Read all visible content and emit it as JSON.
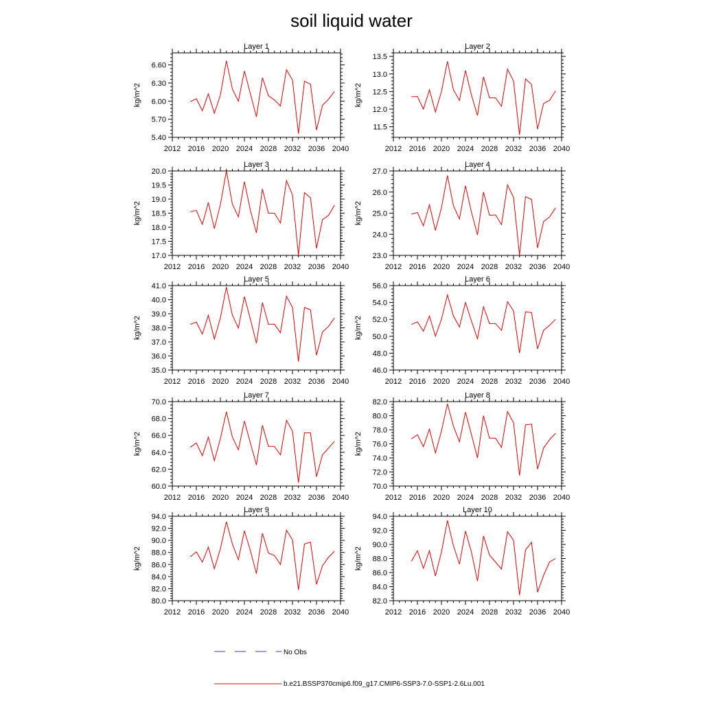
{
  "figure": {
    "title": "soil liquid water"
  },
  "legend": {
    "obs_label": "No Obs",
    "model_label": "b.e21.BSSP370cmip6.f09_g17.CMIP6-SSP3-7.0-SSP1-2.6Lu.001",
    "obs_color": "#3a3ad6",
    "model_color": "#e00000"
  },
  "chart_data": [
    {
      "type": "line",
      "title": "Layer 1",
      "ylabel": "kg/m^2",
      "xlim": [
        2012,
        2040
      ],
      "ylim": [
        5.4,
        6.8
      ],
      "x_ticks": [
        2012,
        2016,
        2020,
        2024,
        2028,
        2032,
        2036,
        2040
      ],
      "y_ticks": [
        5.4,
        5.7,
        6.0,
        6.3,
        6.6
      ],
      "y_tick_labels": [
        "5.40",
        "5.70",
        "6.00",
        "6.30",
        "6.60"
      ],
      "x": [
        2015,
        2016,
        2017,
        2018,
        2019,
        2020,
        2021,
        2022,
        2023,
        2024,
        2025,
        2026,
        2027,
        2028,
        2029,
        2030,
        2031,
        2032,
        2033,
        2034,
        2035,
        2036,
        2037,
        2038,
        2039
      ],
      "series": [
        {
          "values": [
            5.99,
            6.04,
            5.84,
            6.12,
            5.8,
            6.1,
            6.67,
            6.2,
            6.0,
            6.5,
            6.12,
            5.74,
            6.39,
            6.09,
            6.02,
            5.92,
            6.52,
            6.35,
            5.46,
            6.33,
            6.28,
            5.52,
            5.93,
            6.03,
            6.16
          ]
        }
      ]
    },
    {
      "type": "line",
      "title": "Layer 2",
      "ylabel": "kg/m^2",
      "xlim": [
        2012,
        2040
      ],
      "ylim": [
        11.2,
        13.6
      ],
      "x_ticks": [
        2012,
        2016,
        2020,
        2024,
        2028,
        2032,
        2036,
        2040
      ],
      "y_ticks": [
        11.5,
        12.0,
        12.5,
        13.0,
        13.5
      ],
      "y_tick_labels": [
        "11.5",
        "12.0",
        "12.5",
        "13.0",
        "13.5"
      ],
      "x": [
        2015,
        2016,
        2017,
        2018,
        2019,
        2020,
        2021,
        2022,
        2023,
        2024,
        2025,
        2026,
        2027,
        2028,
        2029,
        2030,
        2031,
        2032,
        2033,
        2034,
        2035,
        2036,
        2037,
        2038,
        2039
      ],
      "series": [
        {
          "values": [
            12.35,
            12.36,
            12.0,
            12.55,
            11.92,
            12.5,
            13.36,
            12.55,
            12.25,
            13.1,
            12.4,
            11.82,
            12.92,
            12.32,
            12.32,
            12.08,
            13.14,
            12.8,
            11.27,
            12.86,
            12.7,
            11.43,
            12.16,
            12.25,
            12.52
          ]
        }
      ]
    },
    {
      "type": "line",
      "title": "Layer 3",
      "ylabel": "kg/m^2",
      "xlim": [
        2012,
        2040
      ],
      "ylim": [
        17.0,
        20.0
      ],
      "x_ticks": [
        2012,
        2016,
        2020,
        2024,
        2028,
        2032,
        2036,
        2040
      ],
      "y_ticks": [
        17.0,
        17.5,
        18.0,
        18.5,
        19.0,
        19.5,
        20.0
      ],
      "y_tick_labels": [
        "17.0",
        "17.5",
        "18.0",
        "18.5",
        "19.0",
        "19.5",
        "20.0"
      ],
      "x": [
        2015,
        2016,
        2017,
        2018,
        2019,
        2020,
        2021,
        2022,
        2023,
        2024,
        2025,
        2026,
        2027,
        2028,
        2029,
        2030,
        2031,
        2032,
        2033,
        2034,
        2035,
        2036,
        2037,
        2038,
        2039
      ],
      "series": [
        {
          "values": [
            18.55,
            18.6,
            18.1,
            18.88,
            17.95,
            18.8,
            20.0,
            18.82,
            18.37,
            19.62,
            18.6,
            17.8,
            19.36,
            18.5,
            18.5,
            18.15,
            19.66,
            19.15,
            17.0,
            19.23,
            19.05,
            17.25,
            18.27,
            18.42,
            18.78
          ]
        }
      ]
    },
    {
      "type": "line",
      "title": "Layer 4",
      "ylabel": "kg/m^2",
      "xlim": [
        2012,
        2040
      ],
      "ylim": [
        23.0,
        27.0
      ],
      "x_ticks": [
        2012,
        2016,
        2020,
        2024,
        2028,
        2032,
        2036,
        2040
      ],
      "y_ticks": [
        23.0,
        24.0,
        25.0,
        26.0,
        27.0
      ],
      "y_tick_labels": [
        "23.0",
        "24.0",
        "25.0",
        "26.0",
        "27.0"
      ],
      "x": [
        2015,
        2016,
        2017,
        2018,
        2019,
        2020,
        2021,
        2022,
        2023,
        2024,
        2025,
        2026,
        2027,
        2028,
        2029,
        2030,
        2031,
        2032,
        2033,
        2034,
        2035,
        2036,
        2037,
        2038,
        2039
      ],
      "series": [
        {
          "values": [
            24.95,
            25.03,
            24.4,
            25.4,
            24.18,
            25.25,
            26.78,
            25.35,
            24.72,
            26.3,
            25.05,
            23.97,
            26.0,
            24.9,
            24.92,
            24.46,
            26.34,
            25.75,
            23.0,
            25.78,
            25.65,
            23.35,
            24.6,
            24.82,
            25.25
          ]
        }
      ]
    },
    {
      "type": "line",
      "title": "Layer 5",
      "ylabel": "kg/m^2",
      "xlim": [
        2012,
        2040
      ],
      "ylim": [
        35.0,
        41.0
      ],
      "x_ticks": [
        2012,
        2016,
        2020,
        2024,
        2028,
        2032,
        2036,
        2040
      ],
      "y_ticks": [
        35.0,
        36.0,
        37.0,
        38.0,
        39.0,
        40.0,
        41.0
      ],
      "y_tick_labels": [
        "35.0",
        "36.0",
        "37.0",
        "38.0",
        "39.0",
        "40.0",
        "41.0"
      ],
      "x": [
        2015,
        2016,
        2017,
        2018,
        2019,
        2020,
        2021,
        2022,
        2023,
        2024,
        2025,
        2026,
        2027,
        2028,
        2029,
        2030,
        2031,
        2032,
        2033,
        2034,
        2035,
        2036,
        2037,
        2038,
        2039
      ],
      "series": [
        {
          "values": [
            38.25,
            38.4,
            37.55,
            38.9,
            37.2,
            38.7,
            40.9,
            38.9,
            37.98,
            40.22,
            38.6,
            36.9,
            39.8,
            38.25,
            38.26,
            37.65,
            40.25,
            39.45,
            35.6,
            39.44,
            39.28,
            36.05,
            37.7,
            38.1,
            38.7
          ]
        }
      ]
    },
    {
      "type": "line",
      "title": "Layer 6",
      "ylabel": "kg/m^2",
      "xlim": [
        2012,
        2040
      ],
      "ylim": [
        46.0,
        56.0
      ],
      "x_ticks": [
        2012,
        2016,
        2020,
        2024,
        2028,
        2032,
        2036,
        2040
      ],
      "y_ticks": [
        46.0,
        48.0,
        50.0,
        52.0,
        54.0,
        56.0
      ],
      "y_tick_labels": [
        "46.0",
        "48.0",
        "50.0",
        "52.0",
        "54.0",
        "56.0"
      ],
      "x": [
        2015,
        2016,
        2017,
        2018,
        2019,
        2020,
        2021,
        2022,
        2023,
        2024,
        2025,
        2026,
        2027,
        2028,
        2029,
        2030,
        2031,
        2032,
        2033,
        2034,
        2035,
        2036,
        2037,
        2038,
        2039
      ],
      "series": [
        {
          "values": [
            51.4,
            51.7,
            50.6,
            52.4,
            50.0,
            52.0,
            54.9,
            52.4,
            51.1,
            54.0,
            51.8,
            49.7,
            53.5,
            51.5,
            51.5,
            50.7,
            54.1,
            53.0,
            48.0,
            52.9,
            52.8,
            48.5,
            50.7,
            51.3,
            52.0
          ]
        }
      ]
    },
    {
      "type": "line",
      "title": "Layer 7",
      "ylabel": "kg/m^2",
      "xlim": [
        2012,
        2040
      ],
      "ylim": [
        60.0,
        70.0
      ],
      "x_ticks": [
        2012,
        2016,
        2020,
        2024,
        2028,
        2032,
        2036,
        2040
      ],
      "y_ticks": [
        60.0,
        62.0,
        64.0,
        66.0,
        68.0,
        70.0
      ],
      "y_tick_labels": [
        "60.0",
        "62.0",
        "64.0",
        "66.0",
        "68.0",
        "70.0"
      ],
      "x": [
        2015,
        2016,
        2017,
        2018,
        2019,
        2020,
        2021,
        2022,
        2023,
        2024,
        2025,
        2026,
        2027,
        2028,
        2029,
        2030,
        2031,
        2032,
        2033,
        2034,
        2035,
        2036,
        2037,
        2038,
        2039
      ],
      "series": [
        {
          "values": [
            64.6,
            65.1,
            63.6,
            65.8,
            63.0,
            65.6,
            68.8,
            65.8,
            64.3,
            67.7,
            65.1,
            62.5,
            67.2,
            64.7,
            64.7,
            63.7,
            67.8,
            66.5,
            60.4,
            66.3,
            66.3,
            61.1,
            63.7,
            64.5,
            65.3
          ]
        }
      ]
    },
    {
      "type": "line",
      "title": "Layer 8",
      "ylabel": "kg/m^2",
      "xlim": [
        2012,
        2040
      ],
      "ylim": [
        70.0,
        82.0
      ],
      "x_ticks": [
        2012,
        2016,
        2020,
        2024,
        2028,
        2032,
        2036,
        2040
      ],
      "y_ticks": [
        70.0,
        72.0,
        74.0,
        76.0,
        78.0,
        80.0,
        82.0
      ],
      "y_tick_labels": [
        "70.0",
        "72.0",
        "74.0",
        "76.0",
        "78.0",
        "80.0",
        "82.0"
      ],
      "x": [
        2015,
        2016,
        2017,
        2018,
        2019,
        2020,
        2021,
        2022,
        2023,
        2024,
        2025,
        2026,
        2027,
        2028,
        2029,
        2030,
        2031,
        2032,
        2033,
        2034,
        2035,
        2036,
        2037,
        2038,
        2039
      ],
      "series": [
        {
          "values": [
            76.7,
            77.3,
            75.6,
            78.1,
            74.7,
            77.8,
            81.7,
            78.5,
            76.3,
            80.5,
            77.3,
            74.0,
            80.0,
            76.8,
            76.8,
            75.5,
            80.6,
            79.0,
            71.5,
            78.7,
            78.8,
            72.4,
            75.4,
            76.6,
            77.5
          ]
        }
      ]
    },
    {
      "type": "line",
      "title": "Layer 9",
      "ylabel": "kg/m^2",
      "xlim": [
        2012,
        2040
      ],
      "ylim": [
        80.0,
        94.0
      ],
      "x_ticks": [
        2012,
        2016,
        2020,
        2024,
        2028,
        2032,
        2036,
        2040
      ],
      "y_ticks": [
        80.0,
        82.0,
        84.0,
        86.0,
        88.0,
        90.0,
        92.0,
        94.0
      ],
      "y_tick_labels": [
        "80.0",
        "82.0",
        "84.0",
        "86.0",
        "88.0",
        "90.0",
        "92.0",
        "94.0"
      ],
      "x": [
        2015,
        2016,
        2017,
        2018,
        2019,
        2020,
        2021,
        2022,
        2023,
        2024,
        2025,
        2026,
        2027,
        2028,
        2029,
        2030,
        2031,
        2032,
        2033,
        2034,
        2035,
        2036,
        2037,
        2038,
        2039
      ],
      "series": [
        {
          "values": [
            87.3,
            88.1,
            86.4,
            88.9,
            85.3,
            88.6,
            93.1,
            89.4,
            86.8,
            91.6,
            88.3,
            84.5,
            91.2,
            87.9,
            87.5,
            86.0,
            91.7,
            90.1,
            81.8,
            89.4,
            89.7,
            82.7,
            85.8,
            87.2,
            88.2
          ]
        }
      ]
    },
    {
      "type": "line",
      "title": "Layer 10",
      "ylabel": "kg/m^2",
      "xlim": [
        2012,
        2040
      ],
      "ylim": [
        82.0,
        94.0
      ],
      "x_ticks": [
        2012,
        2016,
        2020,
        2024,
        2028,
        2032,
        2036,
        2040
      ],
      "y_ticks": [
        82.0,
        84.0,
        86.0,
        88.0,
        90.0,
        92.0,
        94.0
      ],
      "y_tick_labels": [
        "82.0",
        "84.0",
        "86.0",
        "88.0",
        "90.0",
        "92.0",
        "94.0"
      ],
      "x": [
        2015,
        2016,
        2017,
        2018,
        2019,
        2020,
        2021,
        2022,
        2023,
        2024,
        2025,
        2026,
        2027,
        2028,
        2029,
        2030,
        2031,
        2032,
        2033,
        2034,
        2035,
        2036,
        2037,
        2038,
        2039
      ],
      "series": [
        {
          "values": [
            87.6,
            89.1,
            86.6,
            89.1,
            85.5,
            88.9,
            93.4,
            89.8,
            87.2,
            91.9,
            88.9,
            84.8,
            91.2,
            88.5,
            87.5,
            86.5,
            91.8,
            90.6,
            82.8,
            89.2,
            90.3,
            83.2,
            85.6,
            87.5,
            88.0
          ]
        }
      ]
    }
  ]
}
